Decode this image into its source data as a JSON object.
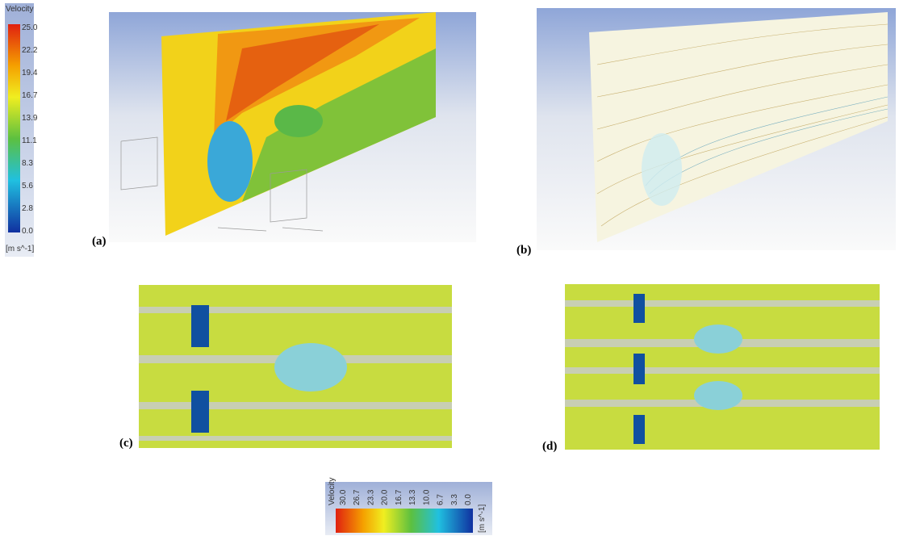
{
  "panels": [
    {
      "label": "(a)"
    },
    {
      "label": "(b)"
    },
    {
      "label": "(c)"
    },
    {
      "label": "(d)"
    }
  ],
  "legend_left": {
    "title": "Velocity",
    "ticks": [
      "25.0",
      "22.2",
      "19.4",
      "16.7",
      "13.9",
      "11.1",
      "8.3",
      "5.6",
      "2.8",
      "0.0"
    ],
    "unit": "[m s^-1]"
  },
  "legend_bottom": {
    "title": "Velocity",
    "ticks": [
      "30.0",
      "26.7",
      "23.3",
      "20.0",
      "16.7",
      "13.3",
      "10.0",
      "6.7",
      "3.3",
      "0.0"
    ],
    "unit": "[m s^-1]"
  }
}
